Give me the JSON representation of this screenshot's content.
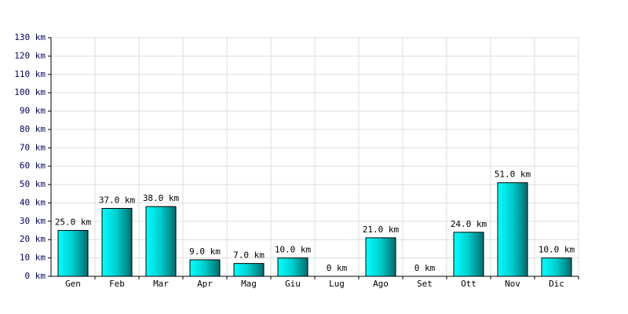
{
  "chart_data": {
    "type": "bar",
    "categories": [
      "Gen",
      "Feb",
      "Mar",
      "Apr",
      "Mag",
      "Giu",
      "Lug",
      "Ago",
      "Set",
      "Ott",
      "Nov",
      "Dic"
    ],
    "values": [
      25,
      37,
      38,
      9,
      7,
      10,
      0,
      21,
      0,
      24,
      51,
      10
    ],
    "value_labels": [
      "25.0 km",
      "37.0 km",
      "38.0 km",
      "9.0 km",
      "7.0 km",
      "10.0 km",
      "0 km",
      "21.0 km",
      "0 km",
      "24.0 km",
      "51.0 km",
      "10.0 km"
    ],
    "color": "#00cccc",
    "ylim": [
      0,
      130
    ],
    "yticks": [
      {
        "value": 0,
        "label": "0 km"
      },
      {
        "value": 10,
        "label": "10 km"
      },
      {
        "value": 20,
        "label": "20 km"
      },
      {
        "value": 30,
        "label": "30 km"
      },
      {
        "value": 40,
        "label": "40 km"
      },
      {
        "value": 50,
        "label": "50 km"
      },
      {
        "value": 60,
        "label": "60 km"
      },
      {
        "value": 70,
        "label": "70 km"
      },
      {
        "value": 80,
        "label": "80 km"
      },
      {
        "value": 90,
        "label": "90 km"
      },
      {
        "value": 100,
        "label": "100 km"
      },
      {
        "value": 110,
        "label": "110 km"
      },
      {
        "value": 120,
        "label": "120 km"
      },
      {
        "value": 130,
        "label": "130 km"
      }
    ],
    "grid": true
  }
}
